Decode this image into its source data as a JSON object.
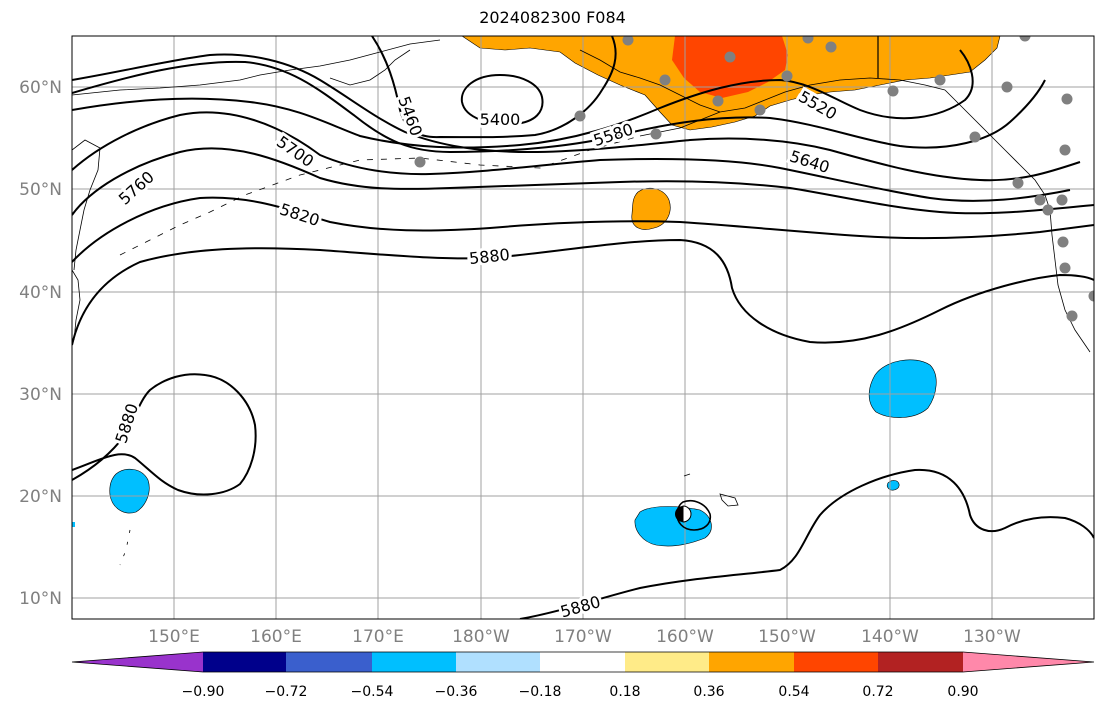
{
  "title": "2024082300 F084",
  "map": {
    "lat_labels": [
      "60°N",
      "50°N",
      "40°N",
      "30°N",
      "20°N",
      "10°N"
    ],
    "lon_labels": [
      "150°E",
      "160°E",
      "170°E",
      "180°W",
      "170°W",
      "160°W",
      "150°W",
      "140°W",
      "130°W"
    ],
    "contour_labels": [
      "5400",
      "5460",
      "5520",
      "5580",
      "5640",
      "5700",
      "5760",
      "5820",
      "5880",
      "5880",
      "5880"
    ],
    "colors": {
      "orange": "#ffa500",
      "orange_red": "#ff4500",
      "deep_sky_blue": "#00bfff",
      "station_gray": "#808080"
    }
  },
  "colorbar": {
    "ticks": [
      "−0.90",
      "−0.72",
      "−0.54",
      "−0.36",
      "−0.18",
      "0.18",
      "0.36",
      "0.54",
      "0.72",
      "0.90"
    ],
    "colors": [
      "#9933cc",
      "#00008b",
      "#3a5fcd",
      "#00bfff",
      "#b0e0ff",
      "#ffffff",
      "#ffeb88",
      "#ffa500",
      "#ff4500",
      "#b22222",
      "#ff88aa"
    ]
  }
}
